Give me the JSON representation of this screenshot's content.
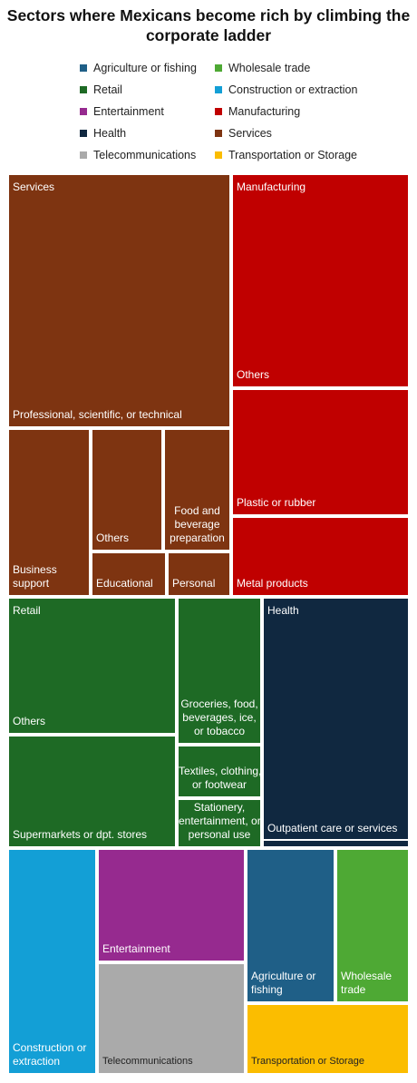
{
  "title_lines": [
    "Sectors where Mexicans become rich by climbing the",
    "corporate ladder"
  ],
  "chart_data": {
    "type": "treemap",
    "title": "Sectors where Mexicans become rich by climbing the corporate ladder",
    "legend": {
      "placement": "top",
      "entries": [
        {
          "name": "Agriculture or fishing",
          "color": "#1f5f87"
        },
        {
          "name": "Wholesale trade",
          "color": "#4ea934"
        },
        {
          "name": "Retail",
          "color": "#1e6a25"
        },
        {
          "name": "Construction or extraction",
          "color": "#139fd6"
        },
        {
          "name": "Entertainment",
          "color": "#962a8f"
        },
        {
          "name": "Manufacturing",
          "color": "#c00000"
        },
        {
          "name": "Health",
          "color": "#102840"
        },
        {
          "name": "Services",
          "color": "#7e3411"
        },
        {
          "name": "Telecommunications",
          "color": "#aaaaaa"
        },
        {
          "name": "Transportation or Storage",
          "color": "#fbbd00"
        }
      ]
    },
    "sectors": [
      {
        "name": "Services",
        "subsectors": [
          {
            "name": "Professional, scientific, or technical",
            "label": "Professional, scientific, or technical"
          },
          {
            "name": "Business support",
            "label": "Business\nsupport"
          },
          {
            "name": "Others",
            "label": "Others"
          },
          {
            "name": "Food and beverage preparation",
            "label": "Food and\nbeverage\npreparation"
          },
          {
            "name": "Educational",
            "label": "Educational"
          },
          {
            "name": "Personal",
            "label": "Personal"
          }
        ]
      },
      {
        "name": "Manufacturing",
        "subsectors": [
          {
            "name": "Others",
            "label": "Others"
          },
          {
            "name": "Plastic or rubber",
            "label": "Plastic or rubber"
          },
          {
            "name": "Metal products",
            "label": "Metal products"
          }
        ]
      },
      {
        "name": "Retail",
        "subsectors": [
          {
            "name": "Others",
            "label": "Others"
          },
          {
            "name": "Groceries, food, beverages, ice, or tobacco",
            "label": "Groceries, food,\nbeverages, ice,\nor tobacco"
          },
          {
            "name": "Textiles, clothing, or footwear",
            "label": "Textiles, clothing,\nor footwear"
          },
          {
            "name": "Supermarkets or dpt. stores",
            "label": "Supermarkets or dpt. stores"
          },
          {
            "name": "Stationery, entertainment, or personal use",
            "label": "Stationery,\nentertainment, or\npersonal use"
          }
        ]
      },
      {
        "name": "Health",
        "subsectors": [
          {
            "name": "Outpatient care or services",
            "label": "Outpatient care or services"
          }
        ]
      },
      {
        "name": "Construction or extraction",
        "subsectors": [
          {
            "name": "Construction or extraction",
            "label": "Construction or\nextraction"
          }
        ]
      },
      {
        "name": "Entertainment",
        "subsectors": [
          {
            "name": "Entertainment",
            "label": "Entertainment"
          }
        ]
      },
      {
        "name": "Telecommunications",
        "subsectors": [
          {
            "name": "Telecommunications",
            "label": "Telecommunications"
          }
        ]
      },
      {
        "name": "Agriculture or fishing",
        "subsectors": [
          {
            "name": "Agriculture or fishing",
            "label": "Agriculture or\nfishing"
          }
        ]
      },
      {
        "name": "Wholesale trade",
        "subsectors": [
          {
            "name": "Wholesale trade",
            "label": "Wholesale\ntrade"
          }
        ]
      },
      {
        "name": "Transportation or Storage",
        "subsectors": [
          {
            "name": "Transportation or Storage",
            "label": "Transportation or Storage"
          }
        ]
      }
    ]
  }
}
